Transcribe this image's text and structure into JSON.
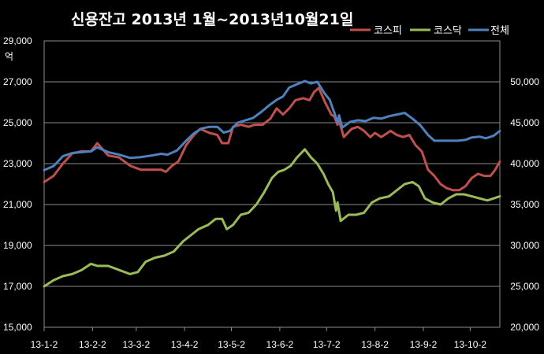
{
  "chart_data": {
    "type": "line",
    "title": "신용잔고 2013년 1월~2013년10월21일",
    "left_axis_unit": "억",
    "ylim_left": [
      15000,
      29000
    ],
    "ylim_right": [
      20000,
      55000
    ],
    "left_ticks": [
      "15,000",
      "17,000",
      "19,000",
      "21,000",
      "23,000",
      "25,000",
      "27,000",
      "29,000"
    ],
    "right_ticks": [
      "20,000",
      "25,000",
      "30,000",
      "35,000",
      "40,000",
      "45,000",
      "50,000"
    ],
    "x_tick_labels": [
      "13-1-2",
      "13-2-2",
      "13-3-2",
      "13-4-2",
      "13-5-2",
      "13-6-2",
      "13-7-2",
      "13-8-2",
      "13-9-2",
      "13-10-2"
    ],
    "x_range": [
      "2013-01-02",
      "2013-10-21"
    ],
    "grid": true,
    "legend_position": "top-right",
    "series": [
      {
        "name": "코스피",
        "axis": "left",
        "color": "#C0504D",
        "points": [
          [
            "2013-01-02",
            22100
          ],
          [
            "2013-01-08",
            22400
          ],
          [
            "2013-01-14",
            23000
          ],
          [
            "2013-01-20",
            23500
          ],
          [
            "2013-01-26",
            23600
          ],
          [
            "2013-02-01",
            23600
          ],
          [
            "2013-02-05",
            24000
          ],
          [
            "2013-02-12",
            23400
          ],
          [
            "2013-02-19",
            23300
          ],
          [
            "2013-02-26",
            22900
          ],
          [
            "2013-03-05",
            22700
          ],
          [
            "2013-03-12",
            22700
          ],
          [
            "2013-03-18",
            22700
          ],
          [
            "2013-03-21",
            22600
          ],
          [
            "2013-03-25",
            22900
          ],
          [
            "2013-03-29",
            23100
          ],
          [
            "2013-04-03",
            23900
          ],
          [
            "2013-04-08",
            24400
          ],
          [
            "2013-04-12",
            24700
          ],
          [
            "2013-04-18",
            24500
          ],
          [
            "2013-04-23",
            24400
          ],
          [
            "2013-04-26",
            24000
          ],
          [
            "2013-04-30",
            24000
          ],
          [
            "2013-05-03",
            24800
          ],
          [
            "2013-05-08",
            24900
          ],
          [
            "2013-05-13",
            24800
          ],
          [
            "2013-05-17",
            24900
          ],
          [
            "2013-05-22",
            24900
          ],
          [
            "2013-05-27",
            25200
          ],
          [
            "2013-05-31",
            25700
          ],
          [
            "2013-06-04",
            25400
          ],
          [
            "2013-06-08",
            25700
          ],
          [
            "2013-06-12",
            26100
          ],
          [
            "2013-06-17",
            26200
          ],
          [
            "2013-06-21",
            26100
          ],
          [
            "2013-06-24",
            26500
          ],
          [
            "2013-06-27",
            26700
          ],
          [
            "2013-07-01",
            26000
          ],
          [
            "2013-07-05",
            25400
          ],
          [
            "2013-07-07",
            25300
          ],
          [
            "2013-07-09",
            24900
          ],
          [
            "2013-07-10",
            25100
          ],
          [
            "2013-07-13",
            24300
          ],
          [
            "2013-07-18",
            24700
          ],
          [
            "2013-07-22",
            24800
          ],
          [
            "2013-07-26",
            24600
          ],
          [
            "2013-07-30",
            24300
          ],
          [
            "2013-08-02",
            24500
          ],
          [
            "2013-08-06",
            24300
          ],
          [
            "2013-08-12",
            24600
          ],
          [
            "2013-08-16",
            24400
          ],
          [
            "2013-08-20",
            24300
          ],
          [
            "2013-08-24",
            24400
          ],
          [
            "2013-08-28",
            23900
          ],
          [
            "2013-09-01",
            23600
          ],
          [
            "2013-09-05",
            22700
          ],
          [
            "2013-09-09",
            22400
          ],
          [
            "2013-09-13",
            22000
          ],
          [
            "2013-09-17",
            21800
          ],
          [
            "2013-09-21",
            21700
          ],
          [
            "2013-09-25",
            21700
          ],
          [
            "2013-09-29",
            21900
          ],
          [
            "2013-10-03",
            22300
          ],
          [
            "2013-10-07",
            22500
          ],
          [
            "2013-10-11",
            22400
          ],
          [
            "2013-10-15",
            22400
          ],
          [
            "2013-10-18",
            22700
          ],
          [
            "2013-10-21",
            23100
          ]
        ]
      },
      {
        "name": "코스닥",
        "axis": "left",
        "color": "#9BBB59",
        "points": [
          [
            "2013-01-02",
            17000
          ],
          [
            "2013-01-08",
            17300
          ],
          [
            "2013-01-14",
            17500
          ],
          [
            "2013-01-20",
            17600
          ],
          [
            "2013-01-26",
            17800
          ],
          [
            "2013-02-01",
            18100
          ],
          [
            "2013-02-05",
            18000
          ],
          [
            "2013-02-12",
            18000
          ],
          [
            "2013-02-19",
            17800
          ],
          [
            "2013-02-26",
            17600
          ],
          [
            "2013-03-03",
            17700
          ],
          [
            "2013-03-08",
            18200
          ],
          [
            "2013-03-14",
            18400
          ],
          [
            "2013-03-20",
            18500
          ],
          [
            "2013-03-26",
            18700
          ],
          [
            "2013-04-01",
            19200
          ],
          [
            "2013-04-06",
            19500
          ],
          [
            "2013-04-11",
            19800
          ],
          [
            "2013-04-17",
            20000
          ],
          [
            "2013-04-22",
            20300
          ],
          [
            "2013-04-26",
            20300
          ],
          [
            "2013-04-29",
            19800
          ],
          [
            "2013-05-03",
            20000
          ],
          [
            "2013-05-08",
            20500
          ],
          [
            "2013-05-13",
            20600
          ],
          [
            "2013-05-18",
            21000
          ],
          [
            "2013-05-23",
            21600
          ],
          [
            "2013-05-28",
            22300
          ],
          [
            "2013-06-01",
            22600
          ],
          [
            "2013-06-05",
            22700
          ],
          [
            "2013-06-09",
            22900
          ],
          [
            "2013-06-13",
            23300
          ],
          [
            "2013-06-18",
            23700
          ],
          [
            "2013-06-22",
            23300
          ],
          [
            "2013-06-26",
            23000
          ],
          [
            "2013-06-30",
            22500
          ],
          [
            "2013-07-03",
            22000
          ],
          [
            "2013-07-06",
            21600
          ],
          [
            "2013-07-08",
            20700
          ],
          [
            "2013-07-09",
            21100
          ],
          [
            "2013-07-11",
            20200
          ],
          [
            "2013-07-16",
            20500
          ],
          [
            "2013-07-21",
            20500
          ],
          [
            "2013-07-26",
            20600
          ],
          [
            "2013-07-31",
            21100
          ],
          [
            "2013-08-05",
            21300
          ],
          [
            "2013-08-11",
            21400
          ],
          [
            "2013-08-16",
            21700
          ],
          [
            "2013-08-21",
            22000
          ],
          [
            "2013-08-26",
            22100
          ],
          [
            "2013-08-30",
            21900
          ],
          [
            "2013-09-03",
            21300
          ],
          [
            "2013-09-08",
            21100
          ],
          [
            "2013-09-13",
            21000
          ],
          [
            "2013-09-18",
            21300
          ],
          [
            "2013-09-23",
            21500
          ],
          [
            "2013-09-28",
            21500
          ],
          [
            "2013-10-03",
            21400
          ],
          [
            "2013-10-08",
            21300
          ],
          [
            "2013-10-13",
            21200
          ],
          [
            "2013-10-17",
            21300
          ],
          [
            "2013-10-21",
            21400
          ]
        ]
      },
      {
        "name": "전체",
        "axis": "right",
        "color": "#4F81BD",
        "points": [
          [
            "2013-01-02",
            39200
          ],
          [
            "2013-01-08",
            39700
          ],
          [
            "2013-01-14",
            40900
          ],
          [
            "2013-01-20",
            41300
          ],
          [
            "2013-01-26",
            41400
          ],
          [
            "2013-02-01",
            41500
          ],
          [
            "2013-02-05",
            42000
          ],
          [
            "2013-02-12",
            41400
          ],
          [
            "2013-02-19",
            41100
          ],
          [
            "2013-02-26",
            40700
          ],
          [
            "2013-03-05",
            40800
          ],
          [
            "2013-03-12",
            41000
          ],
          [
            "2013-03-18",
            41200
          ],
          [
            "2013-03-22",
            41100
          ],
          [
            "2013-03-28",
            41600
          ],
          [
            "2013-04-03",
            42800
          ],
          [
            "2013-04-08",
            43700
          ],
          [
            "2013-04-13",
            44300
          ],
          [
            "2013-04-18",
            44500
          ],
          [
            "2013-04-23",
            44500
          ],
          [
            "2013-04-27",
            43800
          ],
          [
            "2013-05-01",
            44000
          ],
          [
            "2013-05-06",
            45000
          ],
          [
            "2013-05-11",
            45300
          ],
          [
            "2013-05-16",
            45600
          ],
          [
            "2013-05-21",
            46300
          ],
          [
            "2013-05-26",
            47100
          ],
          [
            "2013-05-31",
            47800
          ],
          [
            "2013-06-04",
            48200
          ],
          [
            "2013-06-08",
            49300
          ],
          [
            "2013-06-13",
            49700
          ],
          [
            "2013-06-18",
            50100
          ],
          [
            "2013-06-22",
            49800
          ],
          [
            "2013-06-26",
            50000
          ],
          [
            "2013-07-01",
            48500
          ],
          [
            "2013-07-04",
            47800
          ],
          [
            "2013-07-06",
            46700
          ],
          [
            "2013-07-07",
            46200
          ],
          [
            "2013-07-09",
            45000
          ],
          [
            "2013-07-10",
            45900
          ],
          [
            "2013-07-12",
            44400
          ],
          [
            "2013-07-17",
            45100
          ],
          [
            "2013-07-22",
            45300
          ],
          [
            "2013-07-27",
            45200
          ],
          [
            "2013-08-01",
            45600
          ],
          [
            "2013-08-06",
            45500
          ],
          [
            "2013-08-11",
            45800
          ],
          [
            "2013-08-16",
            46000
          ],
          [
            "2013-08-21",
            46200
          ],
          [
            "2013-08-26",
            45500
          ],
          [
            "2013-08-31",
            44700
          ],
          [
            "2013-09-05",
            43500
          ],
          [
            "2013-09-09",
            42800
          ],
          [
            "2013-09-14",
            42800
          ],
          [
            "2013-09-19",
            42800
          ],
          [
            "2013-09-24",
            42800
          ],
          [
            "2013-09-29",
            42900
          ],
          [
            "2013-10-03",
            43200
          ],
          [
            "2013-10-08",
            43300
          ],
          [
            "2013-10-12",
            43100
          ],
          [
            "2013-10-17",
            43400
          ],
          [
            "2013-10-21",
            44000
          ]
        ]
      }
    ]
  }
}
